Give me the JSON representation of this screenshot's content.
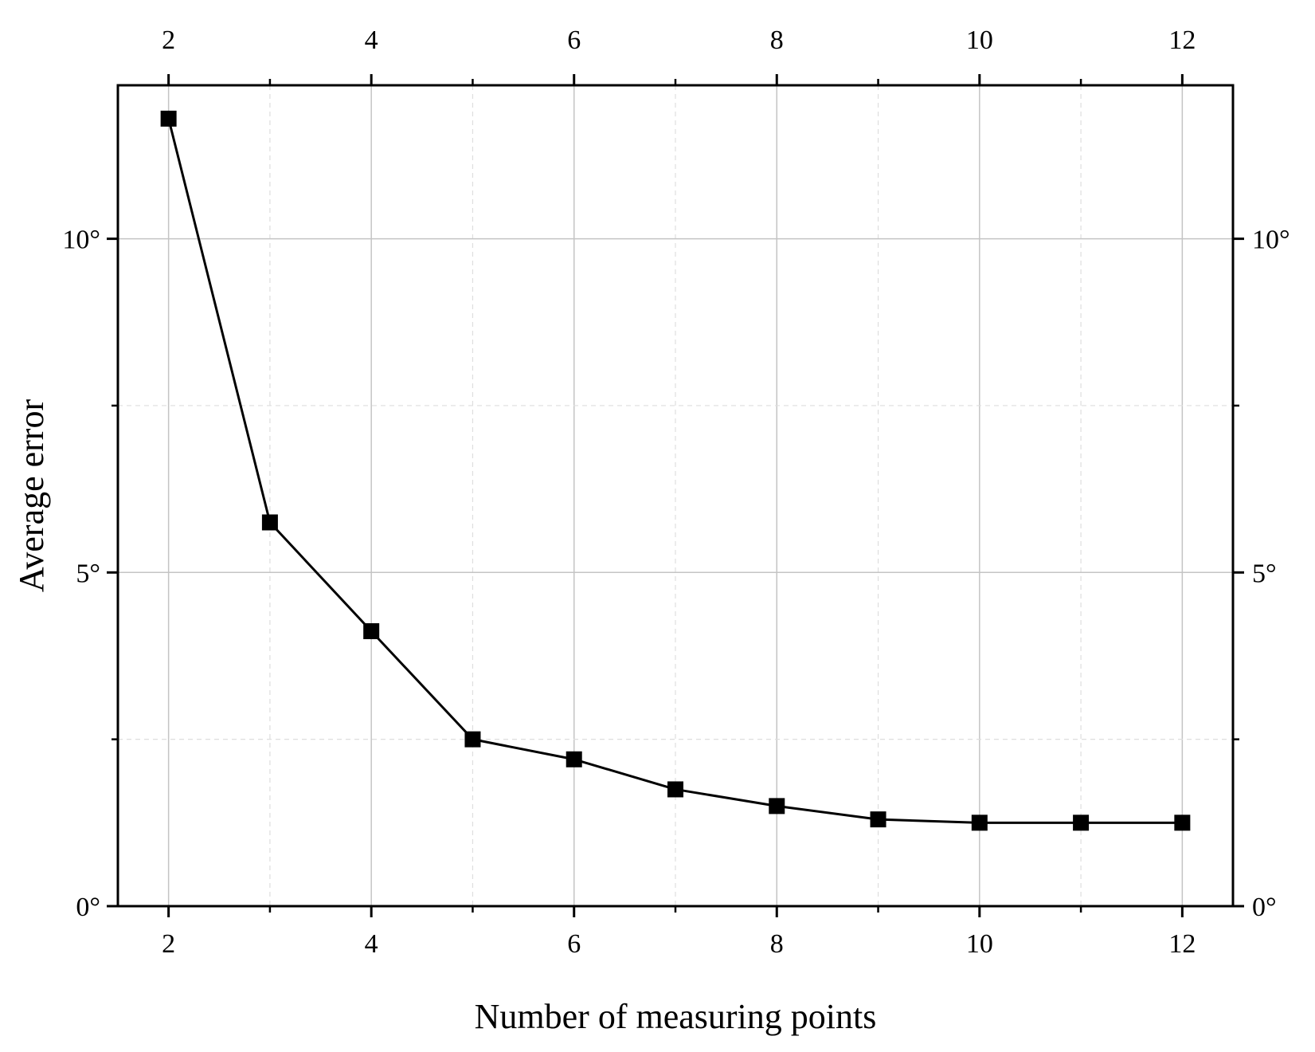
{
  "chart_data": {
    "type": "line",
    "xlabel": "Number of measuring points",
    "ylabel": "Average error",
    "xlim": [
      1.5,
      12.5
    ],
    "ylim": [
      0,
      12.3
    ],
    "x_ticks": [
      2,
      4,
      6,
      8,
      10,
      12
    ],
    "x_minor_ticks": [
      3,
      5,
      7,
      9,
      11
    ],
    "y_ticks": [
      0,
      5,
      10
    ],
    "y_tick_labels": [
      "0°",
      "5°",
      "10°"
    ],
    "y_minor_ticks": [
      2.5,
      7.5
    ],
    "grid": true,
    "mirror_axes": true,
    "series": [
      {
        "color": "#000000",
        "marker": "square",
        "x": [
          2,
          3,
          4,
          5,
          6,
          7,
          8,
          9,
          10,
          11,
          12
        ],
        "y": [
          11.8,
          5.75,
          4.12,
          2.5,
          2.2,
          1.75,
          1.5,
          1.3,
          1.25,
          1.25,
          1.25
        ]
      }
    ]
  }
}
